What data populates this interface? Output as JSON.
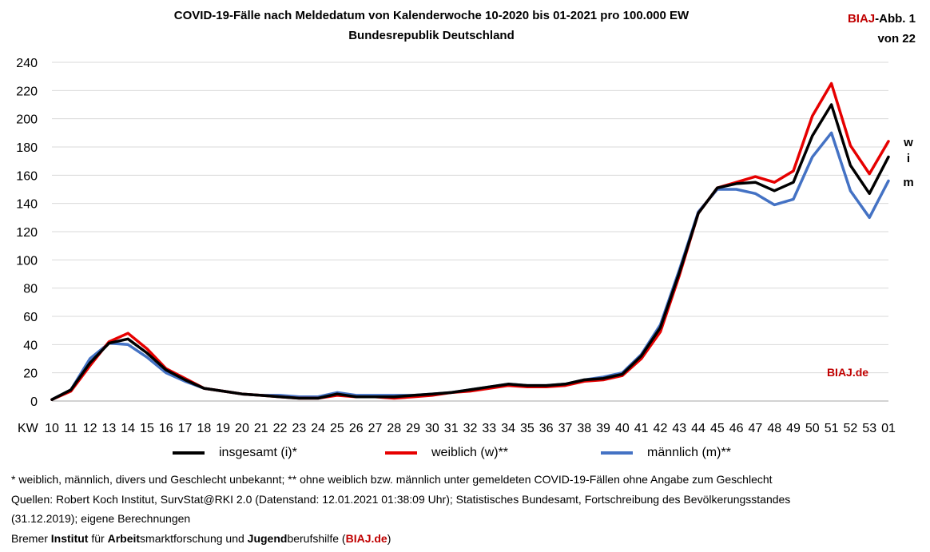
{
  "title_line1": "COVID-19-Fälle nach Meldedatum von Kalenderwoche 10-2020 bis 01-2021 pro 100.000 EW",
  "title_line2": "Bundesrepublik Deutschland",
  "badge": {
    "biaj": "BIAJ",
    "abb": "-Abb. 1",
    "line2": "von 22"
  },
  "watermark": "BIAJ.de",
  "chart_data": {
    "type": "line",
    "x_axis_prefix": "KW",
    "categories": [
      "10",
      "11",
      "12",
      "13",
      "14",
      "15",
      "16",
      "17",
      "18",
      "19",
      "20",
      "21",
      "22",
      "23",
      "24",
      "25",
      "26",
      "27",
      "28",
      "29",
      "30",
      "31",
      "32",
      "33",
      "34",
      "35",
      "36",
      "37",
      "38",
      "39",
      "40",
      "41",
      "42",
      "43",
      "44",
      "45",
      "46",
      "47",
      "48",
      "49",
      "50",
      "51",
      "52",
      "53",
      "01"
    ],
    "ylim": [
      0,
      240
    ],
    "yticks": [
      0,
      20,
      40,
      60,
      80,
      100,
      120,
      140,
      160,
      180,
      200,
      220,
      240
    ],
    "grid": true,
    "series": [
      {
        "name": "insgesamt (i)*",
        "end_label": "i",
        "color": "#000000",
        "values": [
          1,
          8,
          27,
          41,
          44,
          34,
          22,
          15,
          9,
          7,
          5,
          4,
          3,
          2,
          2,
          5,
          3,
          3,
          3,
          4,
          5,
          6,
          8,
          10,
          12,
          11,
          11,
          12,
          15,
          16,
          19,
          32,
          52,
          91,
          133,
          151,
          154,
          155,
          149,
          155,
          188,
          210,
          167,
          147,
          173
        ]
      },
      {
        "name": "weiblich (w)**",
        "end_label": "w",
        "color": "#e60000",
        "values": [
          1,
          7,
          25,
          42,
          48,
          37,
          23,
          16,
          9,
          7,
          5,
          4,
          3,
          2,
          2,
          4,
          3,
          3,
          2,
          3,
          4,
          6,
          7,
          9,
          11,
          10,
          10,
          11,
          14,
          15,
          18,
          30,
          49,
          89,
          133,
          151,
          155,
          159,
          155,
          163,
          202,
          225,
          181,
          161,
          184
        ]
      },
      {
        "name": "männlich (m)**",
        "end_label": "m",
        "color": "#4472c4",
        "values": [
          1,
          8,
          30,
          41,
          40,
          31,
          20,
          14,
          9,
          7,
          5,
          4,
          4,
          3,
          3,
          6,
          4,
          4,
          4,
          4,
          5,
          6,
          8,
          10,
          12,
          11,
          11,
          12,
          15,
          17,
          20,
          33,
          54,
          93,
          134,
          150,
          150,
          147,
          139,
          143,
          173,
          190,
          149,
          130,
          156
        ]
      }
    ]
  },
  "legend": {
    "total": "insgesamt (i)*",
    "female": "weiblich (w)**",
    "male": "männlich (m)**"
  },
  "notes": {
    "line1": "* weiblich, männlich, divers und Geschlecht unbekannt; ** ohne weiblich bzw. männlich unter gemeldeten COVID-19-Fällen ohne Angabe zum Geschlecht",
    "line2": "Quellen: Robert Koch Institut, SurvStat@RKI 2.0 (Datenstand: 12.01.2021 01:38:09 Uhr); Statistisches Bundesamt, Fortschreibung des Bevölkerungsstandes",
    "line3": "(31.12.2019); eigene Berechnungen",
    "line4": {
      "p1": "Bremer ",
      "b1": "Institut",
      "p2": " für ",
      "b2": "Arbeit",
      "p3": "smarktforschung und ",
      "b3": "Jugend",
      "p4": "berufshilfe (",
      "red": "BIAJ.de",
      "p5": ")"
    }
  }
}
